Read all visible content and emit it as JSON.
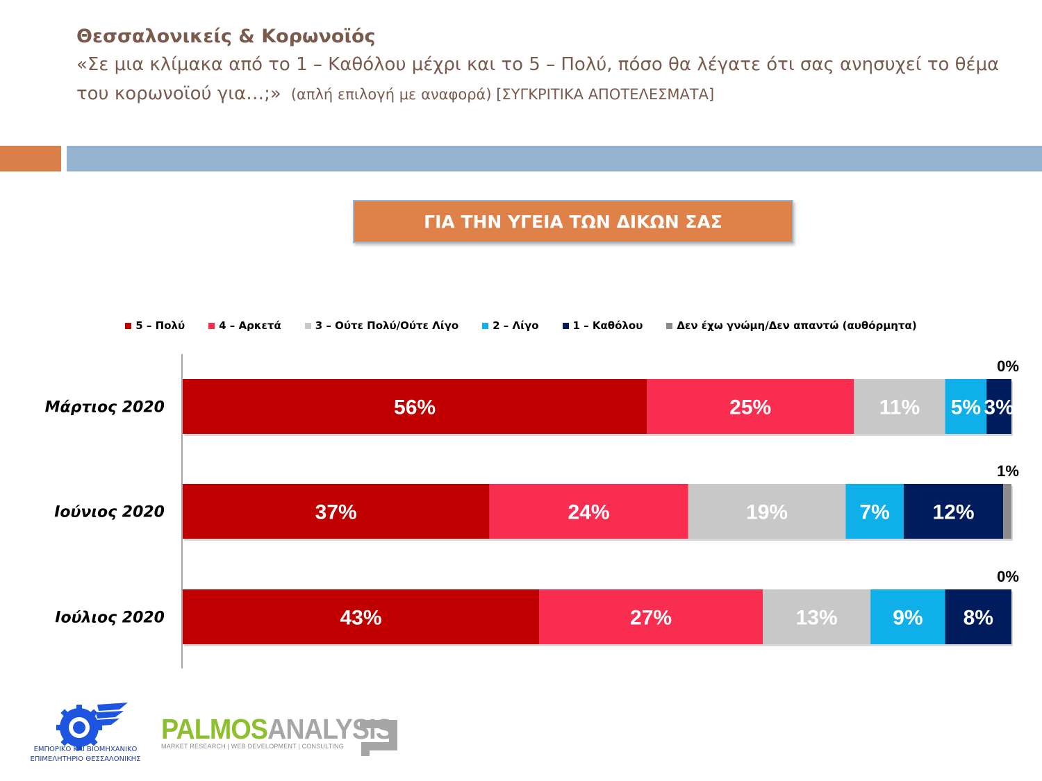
{
  "header": {
    "title": "Θεσσαλονικείς & Κορωνοϊός",
    "question": "«Σε μια κλίμακα από το 1 – Καθόλου μέχρι και το 5 – Πολύ, πόσο θα λέγατε ότι σας ανησυχεί το θέμα του κορωνοϊού για…;»",
    "note": "(απλή επιλογή με αναφορά) [ΣΥΓΚΡΙΤΙΚΑ ΑΠΟΤΕΛΕΣΜΑΤΑ]"
  },
  "chart_box_label": "ΓΙΑ ΤΗΝ ΥΓΕΙΑ ΤΩΝ ΔΙΚΩΝ ΣΑΣ",
  "colors": {
    "accent_orange": "#d9804a",
    "accent_blue": "#93b3d1",
    "box_fill": "#de8249"
  },
  "chart_data": {
    "type": "bar",
    "orientation": "horizontal",
    "stacked": true,
    "categories": [
      "Μάρτιος 2020",
      "Ιούνιος 2020",
      "Ιούλιος 2020"
    ],
    "series": [
      {
        "name": "5 – Πολύ",
        "color": "#c00000",
        "values": [
          56,
          37,
          43
        ],
        "label_color": "#ffffff"
      },
      {
        "name": "4 – Αρκετά",
        "color": "#f82d4f",
        "values": [
          25,
          24,
          27
        ],
        "label_color": "#ffffff"
      },
      {
        "name": "3 – Ούτε Πολύ/Ούτε Λίγο",
        "color": "#c8c8c8",
        "values": [
          11,
          19,
          13
        ],
        "label_color": "#ffffff"
      },
      {
        "name": "2 – Λίγο",
        "color": "#0fb0ea",
        "values": [
          5,
          7,
          9
        ],
        "label_color": "#ffffff"
      },
      {
        "name": "1 – Καθόλου",
        "color": "#001c5c",
        "values": [
          3,
          12,
          8
        ],
        "label_color": "#ffffff"
      },
      {
        "name": "Δεν έχω γνώμη/Δεν απαντώ (αυθόρμητα)",
        "color": "#8c8c8c",
        "values": [
          0,
          1,
          0
        ],
        "label_color": "#000000",
        "label_outside": true
      }
    ],
    "value_suffix": "%",
    "xlim": [
      0,
      100
    ],
    "legend_position": "top",
    "grid": false
  },
  "logos": {
    "chamber": "ΕΜΠΟΡΙΚΟ ΚΑΙ ΒΙΟΜΗΧΑΝΙΚΟ ΕΠΙΜΕΛΗΤΗΡΙΟ ΘΕΣΣΑΛΟΝΙΚΗΣ",
    "chamber_line1": "ΕΜΠΟΡΙΚΟ ΚΑΙ ΒΙΟΜΗΧΑΝΙΚΟ",
    "chamber_line2": "ΕΠΙΜΕΛΗΤΗΡΙΟ ΘΕΣΣΑΛΟΝΙΚΗΣ",
    "palmos_a": "PALMOS",
    "palmos_b": "ANALYSIS",
    "palmos_tagline": "MARKET RESEARCH | WEB DEVELOPMENT | CONSULTING",
    "chamber_icon": "gear-wing-icon",
    "palmos_icon": "square-bracket-icon"
  }
}
